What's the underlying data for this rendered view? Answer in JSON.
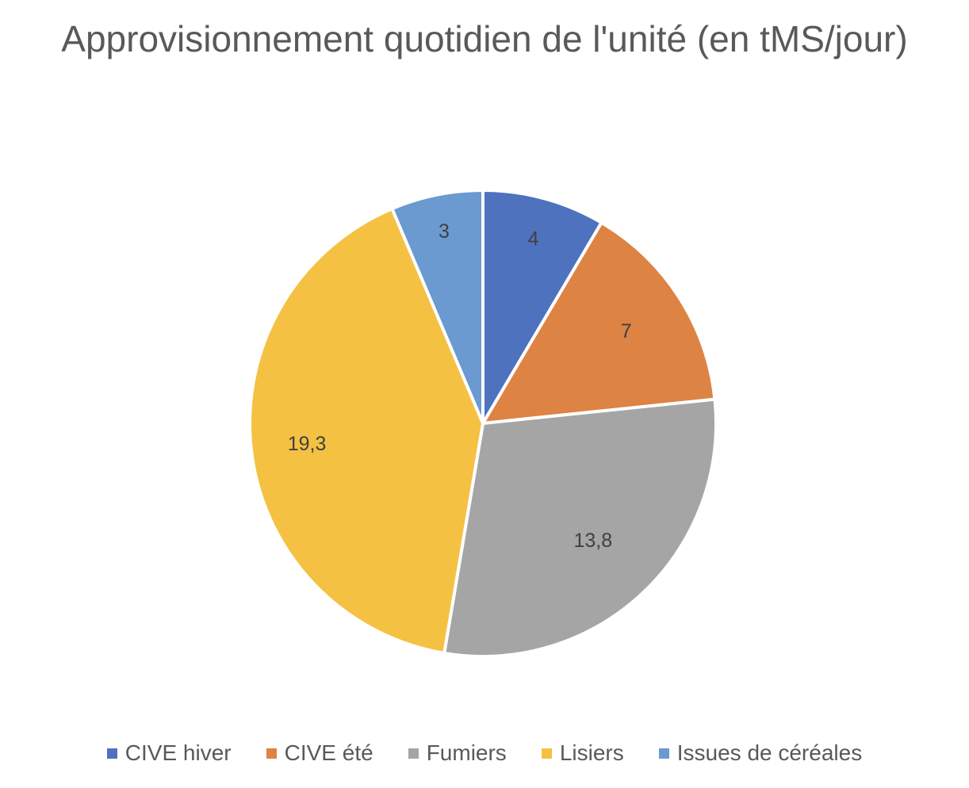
{
  "chart_data": {
    "type": "pie",
    "title": "Approvisionnement quotidien de l'unité (en tMS/jour)",
    "categories": [
      "CIVE hiver",
      "CIVE été",
      "Fumiers",
      "Lisiers",
      "Issues de céréales"
    ],
    "values": [
      4,
      7,
      13.8,
      19.3,
      3
    ],
    "value_labels": [
      "4",
      "7",
      "13,8",
      "19,3",
      "3"
    ],
    "colors": [
      "#4E72BE",
      "#DD8344",
      "#A5A5A5",
      "#F4C142",
      "#6A9AD0"
    ],
    "legend_position": "bottom",
    "start_angle": "top, clockwise"
  }
}
